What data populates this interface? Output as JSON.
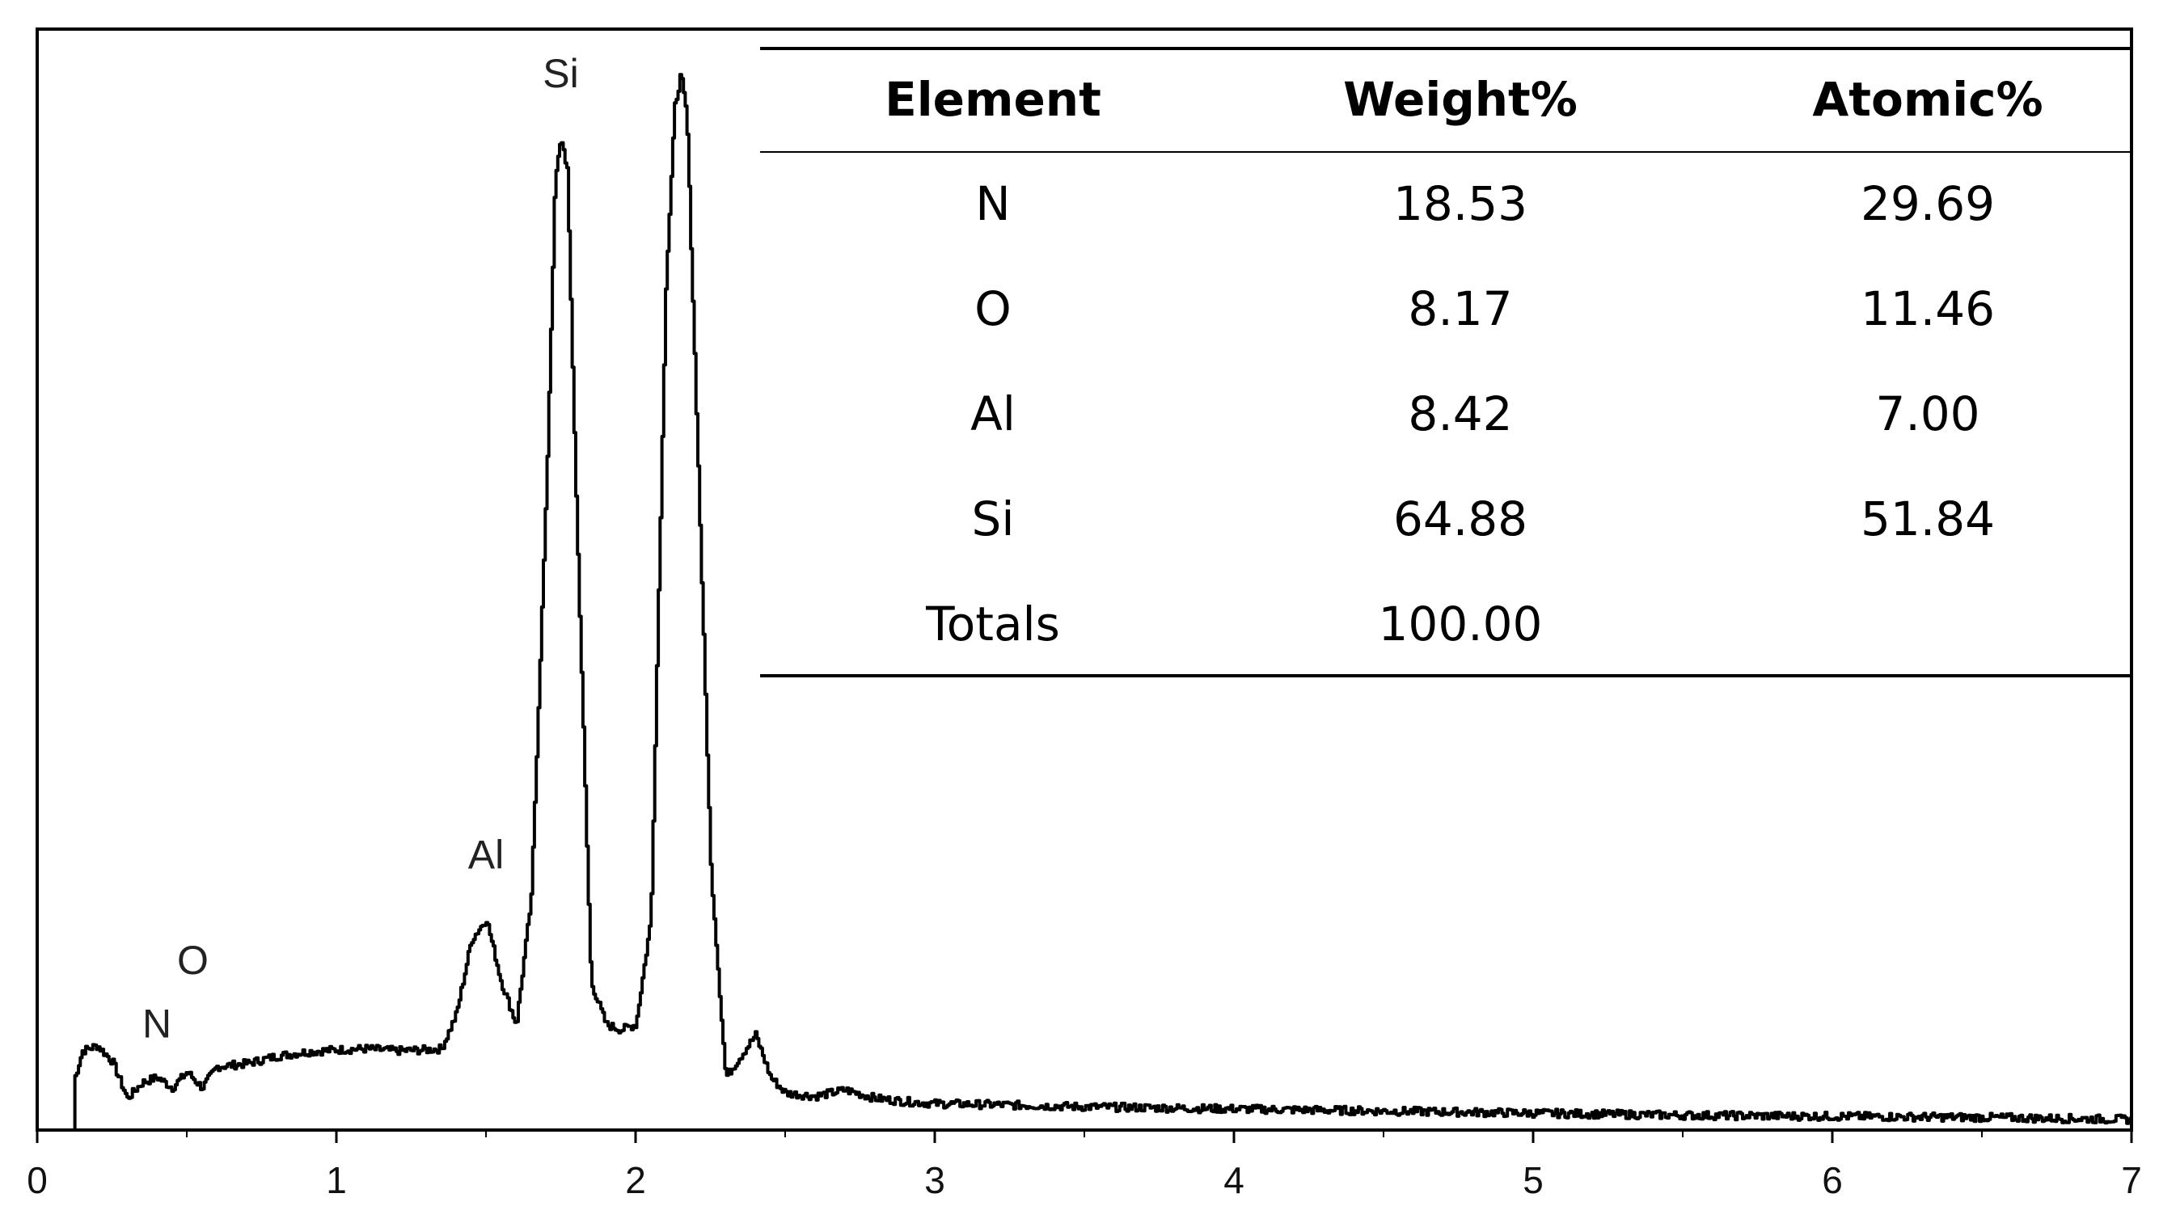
{
  "chart_data": {
    "type": "line",
    "title": "",
    "xlabel": "",
    "ylabel": "",
    "xlim": [
      0,
      7
    ],
    "x_ticks": [
      "0",
      "1",
      "2",
      "3",
      "4",
      "5",
      "6",
      "7"
    ],
    "grid": false,
    "series": [
      {
        "x": [
          0.12,
          0.125,
          0.15,
          0.2,
          0.25,
          0.3,
          0.35,
          0.4,
          0.45,
          0.5,
          0.55,
          0.6,
          0.7,
          0.8,
          0.9,
          1.0,
          1.1,
          1.2,
          1.3,
          1.35,
          1.4,
          1.45,
          1.5,
          1.55,
          1.6,
          1.65,
          1.7,
          1.73,
          1.75,
          1.77,
          1.8,
          1.85,
          1.9,
          1.95,
          2.0,
          2.05,
          2.1,
          2.13,
          2.15,
          2.17,
          2.2,
          2.25,
          2.3,
          2.35,
          2.4,
          2.45,
          2.5,
          2.6,
          2.7,
          2.8,
          2.9,
          3.0,
          3.2,
          3.5,
          4.0,
          4.5,
          5.0,
          5.5,
          6.0,
          6.5,
          7.0
        ],
        "y": [
          0,
          0.05,
          0.075,
          0.08,
          0.065,
          0.03,
          0.045,
          0.05,
          0.04,
          0.055,
          0.04,
          0.06,
          0.063,
          0.07,
          0.074,
          0.076,
          0.077,
          0.075,
          0.076,
          0.077,
          0.11,
          0.18,
          0.2,
          0.14,
          0.1,
          0.22,
          0.6,
          0.9,
          0.94,
          0.91,
          0.6,
          0.14,
          0.1,
          0.095,
          0.1,
          0.2,
          0.8,
          0.97,
          1.0,
          0.96,
          0.7,
          0.25,
          0.05,
          0.07,
          0.09,
          0.05,
          0.035,
          0.032,
          0.038,
          0.03,
          0.027,
          0.025,
          0.024,
          0.022,
          0.02,
          0.018,
          0.016,
          0.014,
          0.013,
          0.012,
          0.01
        ]
      }
    ],
    "peak_labels": [
      {
        "label": "N",
        "x": 0.4,
        "y": 0.08
      },
      {
        "label": "O",
        "x": 0.52,
        "y": 0.14
      },
      {
        "label": "Al",
        "x": 1.5,
        "y": 0.24
      },
      {
        "label": "Si",
        "x": 1.75,
        "y": 0.98
      }
    ],
    "table": {
      "headers": [
        "Element",
        "Weight%",
        "Atomic%"
      ],
      "rows": [
        [
          "N",
          "18.53",
          "29.69"
        ],
        [
          "O",
          "8.17",
          "11.46"
        ],
        [
          "Al",
          "8.42",
          "7.00"
        ],
        [
          "Si",
          "64.88",
          "51.84"
        ],
        [
          "Totals",
          "100.00",
          ""
        ]
      ]
    },
    "colors": {
      "line": "#000000",
      "axis": "#000000",
      "background": "#ffffff"
    }
  }
}
